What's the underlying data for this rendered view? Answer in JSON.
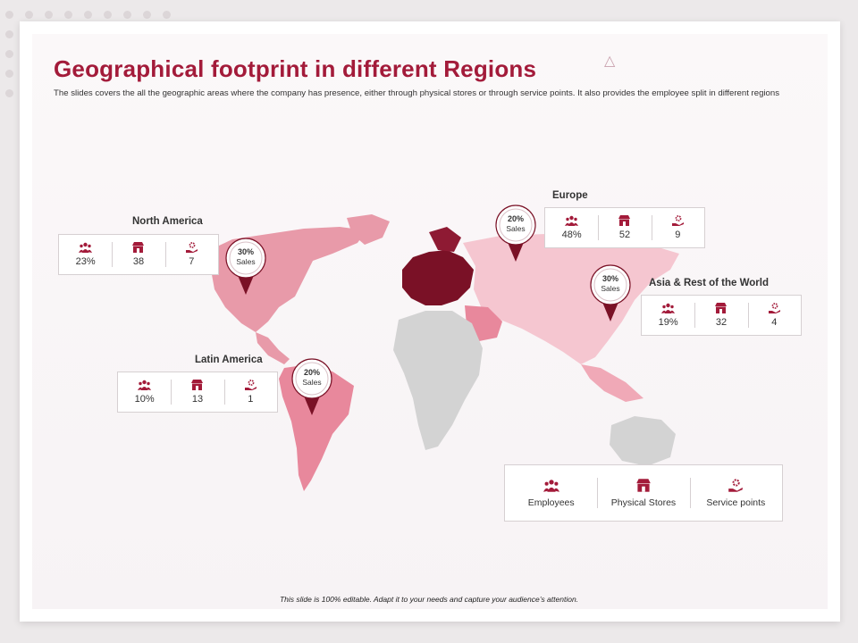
{
  "slide": {
    "title": "Geographical footprint in different Regions",
    "subtitle": "The slides covers the all the geographic areas where the company has presence, either through physical stores or through service points. It also provides the employee split in different regions",
    "footer": "This slide is 100% editable. Adapt it to your needs and capture your audience’s attention."
  },
  "colors": {
    "accent": "#a31b3a",
    "north_america": "#e89aa9",
    "latin_america": "#e8889c",
    "europe": "#7a1126",
    "asia": "#f5c6d0",
    "africa_oceania": "#d3d3d3"
  },
  "regions": {
    "north_america": {
      "name": "North America",
      "employees": "23%",
      "stores": "38",
      "service_points": "7",
      "pin_pct": "30%",
      "pin_label": "Sales"
    },
    "latin_america": {
      "name": "Latin America",
      "employees": "10%",
      "stores": "13",
      "service_points": "1",
      "pin_pct": "20%",
      "pin_label": "Sales"
    },
    "europe": {
      "name": "Europe",
      "employees": "48%",
      "stores": "52",
      "service_points": "9",
      "pin_pct": "20%",
      "pin_label": "Sales"
    },
    "asia_rest": {
      "name": "Asia & Rest of the World",
      "employees": "19%",
      "stores": "32",
      "service_points": "4",
      "pin_pct": "30%",
      "pin_label": "Sales"
    }
  },
  "legend": {
    "employees": "Employees",
    "stores": "Physical Stores",
    "service_points": "Service points",
    "icons": [
      "employees-icon",
      "store-icon",
      "service-point-icon"
    ]
  }
}
